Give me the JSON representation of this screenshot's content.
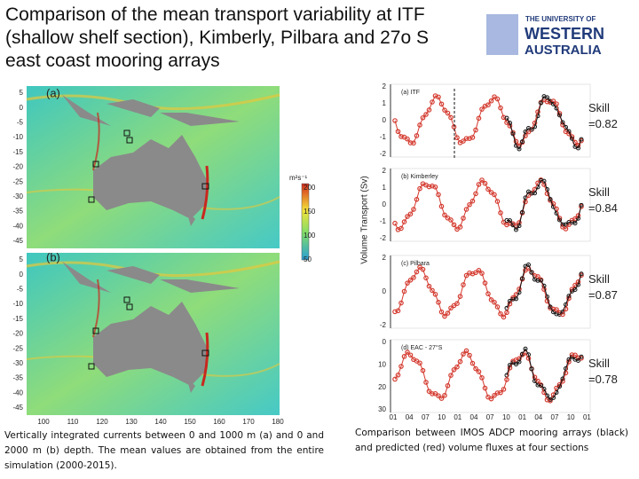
{
  "header": {
    "title": "Comparison of the mean transport variability at ITF (shallow shelf section), Kimberly, Pilbara and 27o S east coast mooring arrays",
    "logo": {
      "line1": "THE UNIVERSITY OF",
      "line2": "WESTERN",
      "line3": "AUSTRALIA"
    }
  },
  "maps": {
    "panels": [
      "(a)",
      "(b)"
    ],
    "lat_ticks": [
      "5",
      "0",
      "-5",
      "-10",
      "-15",
      "-20",
      "-25",
      "-30",
      "-35",
      "-40",
      "-45"
    ],
    "lon_ticks": [
      "100",
      "110",
      "120",
      "130",
      "140",
      "150",
      "160",
      "170",
      "180"
    ],
    "colorbar": {
      "unit": "m²s⁻¹",
      "ticks": [
        "200",
        "150",
        "100",
        "50"
      ]
    }
  },
  "series_plots": {
    "y_label": "Volume Transport (Sv)",
    "panels": [
      {
        "label": "(a) ITF",
        "skill": "Skill =0.82",
        "yticks": [
          "2",
          "1",
          "0",
          "-1",
          "-2"
        ]
      },
      {
        "label": "(b) Kimberley",
        "skill": "Skill =0.84",
        "yticks": [
          "2",
          "1",
          "0",
          "-1",
          "-2"
        ]
      },
      {
        "label": "(c) Pilbara",
        "skill": "Skill =0.87",
        "yticks": [
          "2",
          "0",
          "-2"
        ]
      },
      {
        "label": "(d) EAC - 27°S",
        "skill": "Skill =0.78",
        "yticks": [
          "0",
          "10",
          "20",
          "30"
        ]
      }
    ],
    "xticks": [
      "01",
      "04",
      "07",
      "10",
      "01",
      "04",
      "07",
      "10",
      "01",
      "04",
      "07",
      "10",
      "01"
    ]
  },
  "captions": {
    "left": "Vertically integrated currents between 0 and 1000 m (a) and 0 and 2000 m (b) depth. The mean values are obtained from the entire simulation (2000-2015).",
    "right": "Comparison between IMOS ADCP mooring arrays (black) and predicted (red) volume fluxes at four sections"
  }
}
